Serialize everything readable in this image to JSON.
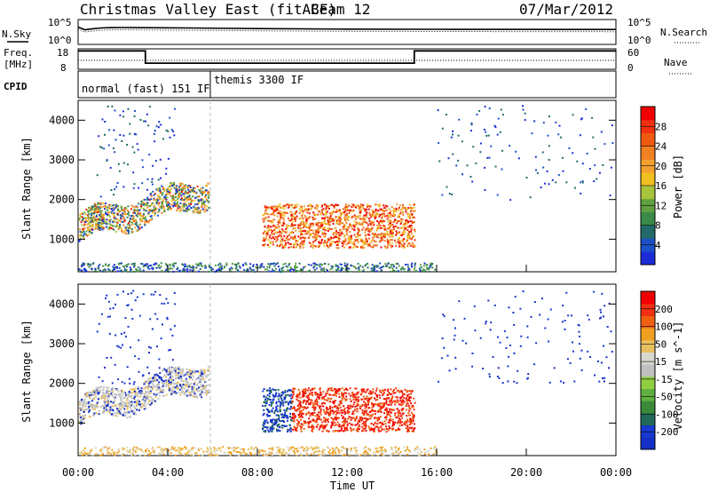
{
  "header": {
    "station": "Christmas Valley East (fitACF)",
    "beam": "Beam 12",
    "date": "07/Mar/2012"
  },
  "labels": {
    "nsky": "N.Sky",
    "freq_line1": "Freq.",
    "freq_line2": "[MHz]",
    "cpid": "CPID",
    "nsearch": "N.Search",
    "nave": "Nave",
    "ten5_left": "10^5",
    "ten0_left": "10^0",
    "ten5_right": "10^5",
    "ten0_right": "10^0",
    "freq_18": "18",
    "freq_8": "8",
    "nave_60": "60",
    "nave_0": "0",
    "cpid_a": "normal (fast) 151 IF",
    "cpid_b": "themis 3300 IF",
    "ylabel": "Slant Range [km]",
    "xlabel": "Time UT",
    "cb_power_label": "Power [dB]",
    "cb_vel_label": "Velocity [m s^-1]"
  },
  "colors": {
    "power_scale": [
      "#1c2bd8",
      "#1c50c8",
      "#226a6a",
      "#3a8a4a",
      "#5fa040",
      "#a8c43a",
      "#f0c020",
      "#f3a030",
      "#f08020",
      "#f05a10",
      "#f03010",
      "#f00000"
    ],
    "velocity_scale": [
      "#1430c8",
      "#1838d0",
      "#206858",
      "#3a8a3a",
      "#60b040",
      "#90d040",
      "#c0c0c0",
      "#d8d8d0",
      "#e8c060",
      "#f0a020",
      "#f06010",
      "#f03010",
      "#f00000"
    ]
  },
  "chart_data": [
    {
      "type": "line",
      "name": "sky-noise",
      "x_range_hours": [
        0,
        24
      ],
      "y_scale": "log",
      "ylim": [
        1,
        100000
      ],
      "series": [
        {
          "x": [
            0,
            0.3,
            0.6,
            1,
            1.5,
            2,
            3,
            5,
            8,
            12,
            16,
            20,
            24
          ],
          "y": [
            3000,
            900,
            1300,
            2000,
            2400,
            2500,
            2300,
            2000,
            1500,
            1200,
            1100,
            1050,
            1000
          ]
        }
      ]
    },
    {
      "type": "line",
      "name": "frequency-and-nave",
      "x_range_hours": [
        0,
        24
      ],
      "ylim_freq": [
        8,
        18
      ],
      "ylim_nave": [
        0,
        60
      ],
      "series": [
        {
          "x": [
            0,
            3,
            3,
            15,
            15,
            24
          ],
          "y": [
            17,
            17,
            11,
            11,
            17,
            17
          ]
        }
      ]
    },
    {
      "type": "table",
      "name": "cpid",
      "segments": [
        {
          "start": 0,
          "end": 5.9,
          "label": "normal (fast) 151 IF"
        },
        {
          "start": 5.9,
          "end": 24,
          "label": "themis 3300 IF"
        }
      ]
    },
    {
      "type": "heatmap",
      "name": "power",
      "xlabel": "",
      "ylabel": "Slant Range [km]",
      "xlim": [
        0,
        24
      ],
      "ylim": [
        180,
        4500
      ],
      "ytick_labels": [
        "1000",
        "2000",
        "3000",
        "4000"
      ],
      "colorbar": {
        "label": "Power [dB]",
        "ticks": [
          "4",
          "8",
          "12",
          "16",
          "20",
          "24",
          "28"
        ],
        "range": [
          0,
          30
        ]
      }
    },
    {
      "type": "heatmap",
      "name": "velocity",
      "xlabel": "Time UT",
      "ylabel": "Slant Range [km]",
      "xlim": [
        0,
        24
      ],
      "ylim": [
        180,
        4500
      ],
      "xtick_labels": [
        "00:00",
        "04:00",
        "08:00",
        "12:00",
        "16:00",
        "20:00",
        "00:00"
      ],
      "ytick_labels": [
        "1000",
        "2000",
        "3000",
        "4000"
      ],
      "colorbar": {
        "label": "Velocity [m s^-1]",
        "ticks": [
          "200",
          "100",
          "50",
          "15",
          "-15",
          "-50",
          "-100",
          "-200"
        ],
        "range": [
          -250,
          250
        ]
      }
    }
  ]
}
